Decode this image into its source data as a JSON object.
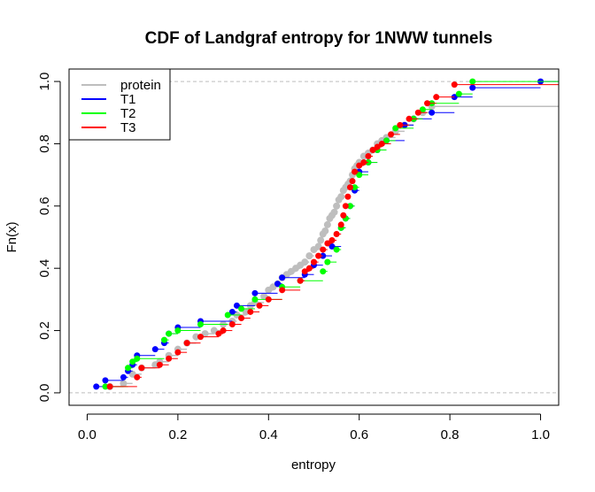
{
  "chart_data": {
    "type": "line",
    "step": true,
    "title": "CDF of Landgraf entropy for 1NWW  tunnels",
    "xlabel": "entropy",
    "ylabel": "Fn(x)",
    "xlim": [
      -0.04,
      1.04
    ],
    "ylim": [
      -0.04,
      1.04
    ],
    "x_ticks": [
      "0.0",
      "0.2",
      "0.4",
      "0.6",
      "0.8",
      "1.0"
    ],
    "y_ticks": [
      "0.0",
      "0.2",
      "0.4",
      "0.6",
      "0.8",
      "1.0"
    ],
    "reference_lines": [
      0,
      1
    ],
    "legend_position": "top-left",
    "series": [
      {
        "name": "protein",
        "color": "#BEBEBE",
        "x": [
          0.05,
          0.08,
          0.1,
          0.12,
          0.15,
          0.16,
          0.18,
          0.2,
          0.22,
          0.24,
          0.26,
          0.28,
          0.3,
          0.32,
          0.33,
          0.35,
          0.36,
          0.37,
          0.39,
          0.4,
          0.41,
          0.42,
          0.43,
          0.44,
          0.45,
          0.46,
          0.47,
          0.48,
          0.49,
          0.5,
          0.51,
          0.515,
          0.52,
          0.525,
          0.53,
          0.535,
          0.54,
          0.545,
          0.55,
          0.555,
          0.56,
          0.565,
          0.57,
          0.575,
          0.58,
          0.585,
          0.59,
          0.595,
          0.6,
          0.61,
          0.62,
          0.63,
          0.64,
          0.65,
          0.66,
          0.68,
          0.7,
          0.72,
          0.74,
          0.76
        ],
        "y": [
          0.02,
          0.03,
          0.06,
          0.08,
          0.09,
          0.1,
          0.12,
          0.14,
          0.16,
          0.18,
          0.19,
          0.2,
          0.22,
          0.23,
          0.25,
          0.26,
          0.28,
          0.29,
          0.31,
          0.33,
          0.34,
          0.35,
          0.37,
          0.38,
          0.39,
          0.4,
          0.41,
          0.42,
          0.44,
          0.46,
          0.47,
          0.49,
          0.51,
          0.52,
          0.54,
          0.56,
          0.57,
          0.58,
          0.6,
          0.62,
          0.63,
          0.65,
          0.66,
          0.67,
          0.68,
          0.7,
          0.72,
          0.73,
          0.74,
          0.76,
          0.77,
          0.78,
          0.8,
          0.81,
          0.82,
          0.84,
          0.86,
          0.88,
          0.9,
          0.92
        ]
      },
      {
        "name": "T1",
        "color": "#0000FF",
        "x": [
          0.02,
          0.04,
          0.08,
          0.09,
          0.1,
          0.11,
          0.15,
          0.17,
          0.18,
          0.2,
          0.25,
          0.32,
          0.33,
          0.37,
          0.42,
          0.43,
          0.48,
          0.5,
          0.52,
          0.54,
          0.56,
          0.57,
          0.58,
          0.59,
          0.6,
          0.62,
          0.64,
          0.66,
          0.7,
          0.72,
          0.76,
          0.81,
          0.85,
          1.0
        ],
        "y": [
          0.02,
          0.04,
          0.05,
          0.07,
          0.09,
          0.12,
          0.14,
          0.16,
          0.19,
          0.21,
          0.23,
          0.26,
          0.28,
          0.32,
          0.35,
          0.37,
          0.38,
          0.41,
          0.44,
          0.47,
          0.53,
          0.56,
          0.6,
          0.65,
          0.71,
          0.74,
          0.78,
          0.81,
          0.86,
          0.88,
          0.9,
          0.95,
          0.98,
          1.0
        ]
      },
      {
        "name": "T2",
        "color": "#00FF00",
        "x": [
          0.04,
          0.09,
          0.1,
          0.11,
          0.17,
          0.18,
          0.2,
          0.25,
          0.31,
          0.34,
          0.37,
          0.43,
          0.47,
          0.52,
          0.53,
          0.55,
          0.56,
          0.57,
          0.58,
          0.59,
          0.6,
          0.62,
          0.64,
          0.66,
          0.68,
          0.72,
          0.74,
          0.76,
          0.82,
          0.85
        ],
        "y": [
          0.02,
          0.08,
          0.1,
          0.11,
          0.17,
          0.19,
          0.2,
          0.22,
          0.25,
          0.27,
          0.3,
          0.34,
          0.36,
          0.39,
          0.42,
          0.46,
          0.53,
          0.56,
          0.6,
          0.66,
          0.7,
          0.74,
          0.78,
          0.81,
          0.85,
          0.88,
          0.91,
          0.93,
          0.96,
          1.0
        ]
      },
      {
        "name": "T3",
        "color": "#FF0000",
        "x": [
          0.05,
          0.11,
          0.12,
          0.16,
          0.18,
          0.2,
          0.22,
          0.25,
          0.29,
          0.3,
          0.32,
          0.34,
          0.36,
          0.38,
          0.4,
          0.43,
          0.47,
          0.48,
          0.49,
          0.5,
          0.51,
          0.52,
          0.53,
          0.54,
          0.55,
          0.56,
          0.565,
          0.57,
          0.575,
          0.58,
          0.585,
          0.59,
          0.6,
          0.61,
          0.62,
          0.63,
          0.64,
          0.65,
          0.67,
          0.69,
          0.71,
          0.73,
          0.75,
          0.77,
          0.81
        ],
        "y": [
          0.02,
          0.05,
          0.08,
          0.09,
          0.11,
          0.13,
          0.16,
          0.18,
          0.19,
          0.2,
          0.22,
          0.24,
          0.26,
          0.28,
          0.3,
          0.33,
          0.36,
          0.39,
          0.4,
          0.42,
          0.44,
          0.46,
          0.48,
          0.49,
          0.51,
          0.54,
          0.57,
          0.6,
          0.63,
          0.66,
          0.68,
          0.71,
          0.73,
          0.74,
          0.76,
          0.78,
          0.79,
          0.8,
          0.83,
          0.86,
          0.88,
          0.9,
          0.93,
          0.95,
          0.99
        ]
      }
    ]
  }
}
